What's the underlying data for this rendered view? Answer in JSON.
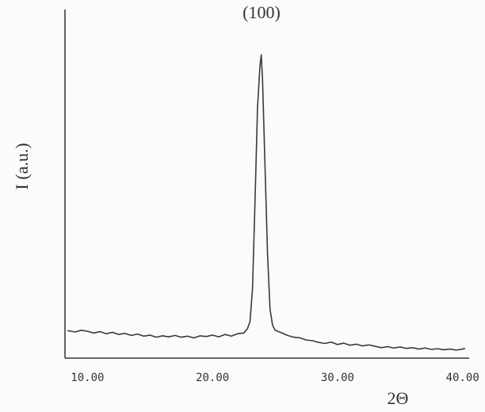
{
  "chart_data": {
    "type": "line",
    "y_label": "I (a.u.)",
    "x_label": "2Θ",
    "annotation": "(100)",
    "x": [
      8.4,
      9,
      9.5,
      10,
      10.5,
      11,
      11.5,
      12,
      12.5,
      13,
      13.5,
      14,
      14.5,
      15,
      15.5,
      16,
      16.5,
      17,
      17.5,
      18,
      18.5,
      19,
      19.5,
      20,
      20.5,
      21,
      21.5,
      22,
      22.5,
      22.8,
      23.0,
      23.2,
      23.4,
      23.6,
      23.8,
      23.9,
      24.0,
      24.2,
      24.4,
      24.6,
      24.8,
      25.0,
      25.5,
      26,
      26.5,
      27,
      27.5,
      28,
      28.5,
      29,
      29.5,
      30,
      30.5,
      31,
      31.5,
      32,
      32.5,
      33,
      33.5,
      34,
      34.5,
      35,
      35.5,
      36,
      36.5,
      37,
      37.5,
      38,
      38.5,
      39,
      39.5,
      40,
      40.2
    ],
    "series": [
      {
        "color": "#3a3a3a",
        "values": [
          7.9,
          7.5,
          8.0,
          7.7,
          7.2,
          7.6,
          7.0,
          7.4,
          6.8,
          7.1,
          6.5,
          6.9,
          6.3,
          6.6,
          6.0,
          6.4,
          6.1,
          6.5,
          6.0,
          6.3,
          5.8,
          6.4,
          6.2,
          6.6,
          6.1,
          6.8,
          6.3,
          7.0,
          7.2,
          8.5,
          10.5,
          20,
          45,
          72,
          84,
          87,
          80,
          55,
          30,
          14,
          9.5,
          8.0,
          7.3,
          6.5,
          6.0,
          5.8,
          5.2,
          5.0,
          4.5,
          4.2,
          4.6,
          3.9,
          4.3,
          3.7,
          4.0,
          3.5,
          3.8,
          3.4,
          3.0,
          3.3,
          2.9,
          3.2,
          2.8,
          3.0,
          2.6,
          2.9,
          2.5,
          2.7,
          2.4,
          2.6,
          2.3,
          2.6,
          2.8
        ]
      }
    ],
    "xlim": [
      8.2,
      40.4
    ],
    "ylim": [
      0,
      100
    ],
    "xticks": [
      {
        "value": 10,
        "label": "10.00"
      },
      {
        "value": 20,
        "label": "20.00"
      },
      {
        "value": 30,
        "label": "30.00"
      },
      {
        "value": 40,
        "label": "40.00"
      }
    ]
  }
}
